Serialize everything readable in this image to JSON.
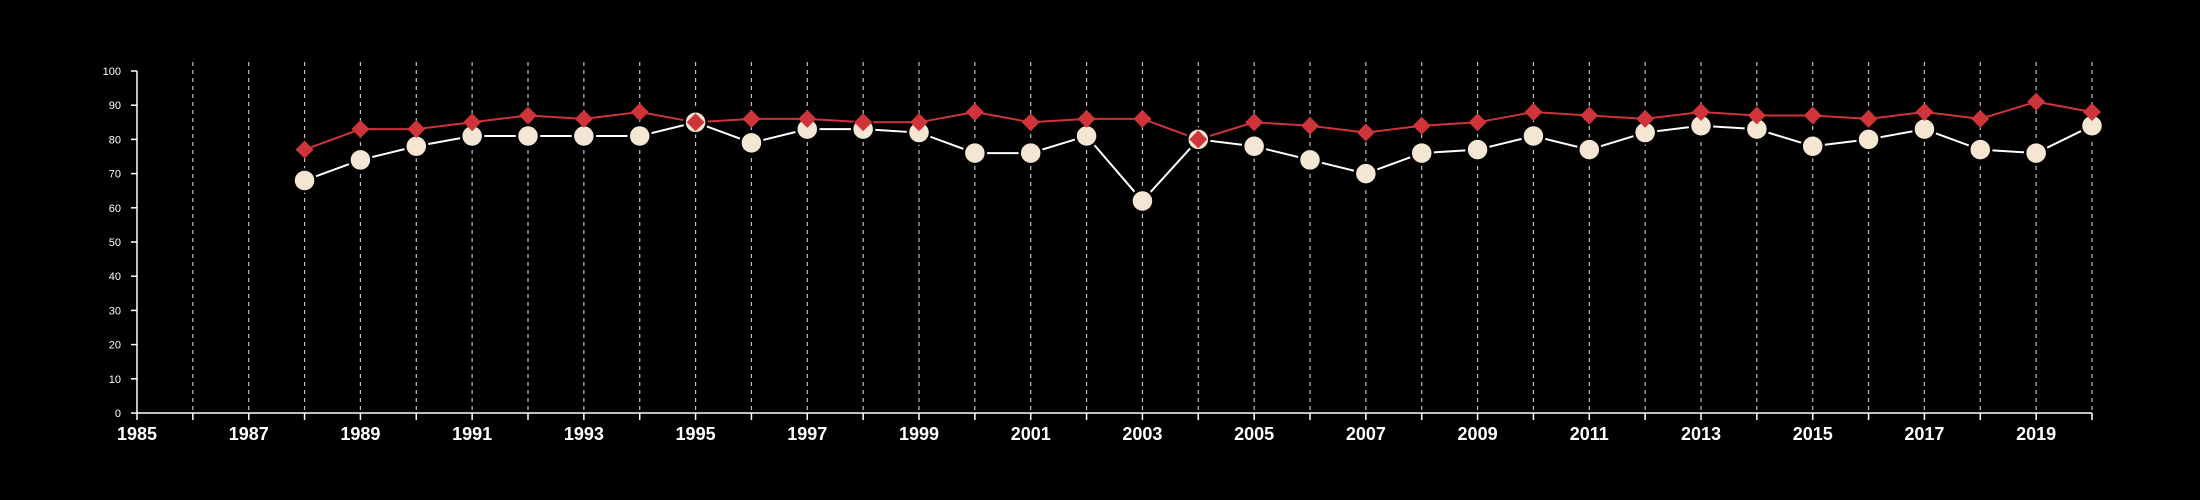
{
  "chart_data": {
    "type": "line",
    "title": "",
    "xlabel": "",
    "ylabel": "",
    "xlim": [
      1985,
      2020
    ],
    "ylim": [
      0,
      100
    ],
    "x_ticks": [
      1985,
      1987,
      1989,
      1991,
      1993,
      1995,
      1997,
      1999,
      2001,
      2003,
      2005,
      2007,
      2009,
      2011,
      2013,
      2015,
      2017,
      2019
    ],
    "x_tick_labels": [
      "1985",
      "1987",
      "1989",
      "1991",
      "1993",
      "1995",
      "1997",
      "1999",
      "2001",
      "2003",
      "2005",
      "2007",
      "2009",
      "2011",
      "2013",
      "2015",
      "2017",
      "2019"
    ],
    "y_ticks": [
      0,
      10,
      20,
      30,
      40,
      50,
      60,
      70,
      80,
      90,
      100
    ],
    "y_tick_labels": [
      "0",
      "10",
      "20",
      "30",
      "40",
      "50",
      "60",
      "70",
      "80",
      "90",
      "100"
    ],
    "grid": "vertical dashed lines at each year",
    "legend": "none",
    "x": [
      1988,
      1989,
      1990,
      1991,
      1992,
      1993,
      1994,
      1995,
      1996,
      1997,
      1998,
      1999,
      2000,
      2001,
      2002,
      2003,
      2004,
      2005,
      2006,
      2007,
      2008,
      2009,
      2010,
      2011,
      2012,
      2013,
      2014,
      2015,
      2016,
      2017,
      2018,
      2019,
      2020
    ],
    "series": [
      {
        "marker": "diamond",
        "color": "#d0343b",
        "values": [
          77,
          83,
          83,
          85,
          87,
          86,
          88,
          85,
          86,
          86,
          85,
          85,
          88,
          85,
          86,
          86,
          80,
          85,
          84,
          82,
          84,
          85,
          88,
          87,
          86,
          88,
          87,
          87,
          86,
          88,
          86,
          91,
          88
        ]
      },
      {
        "marker": "circle",
        "color": "#f5e6d3",
        "line_color": "#ffffff",
        "values": [
          68,
          74,
          78,
          81,
          81,
          81,
          81,
          85,
          79,
          83,
          83,
          82,
          76,
          76,
          81,
          62,
          80,
          78,
          74,
          70,
          76,
          77,
          81,
          77,
          82,
          84,
          83,
          78,
          80,
          83,
          77,
          76,
          84
        ]
      }
    ]
  }
}
